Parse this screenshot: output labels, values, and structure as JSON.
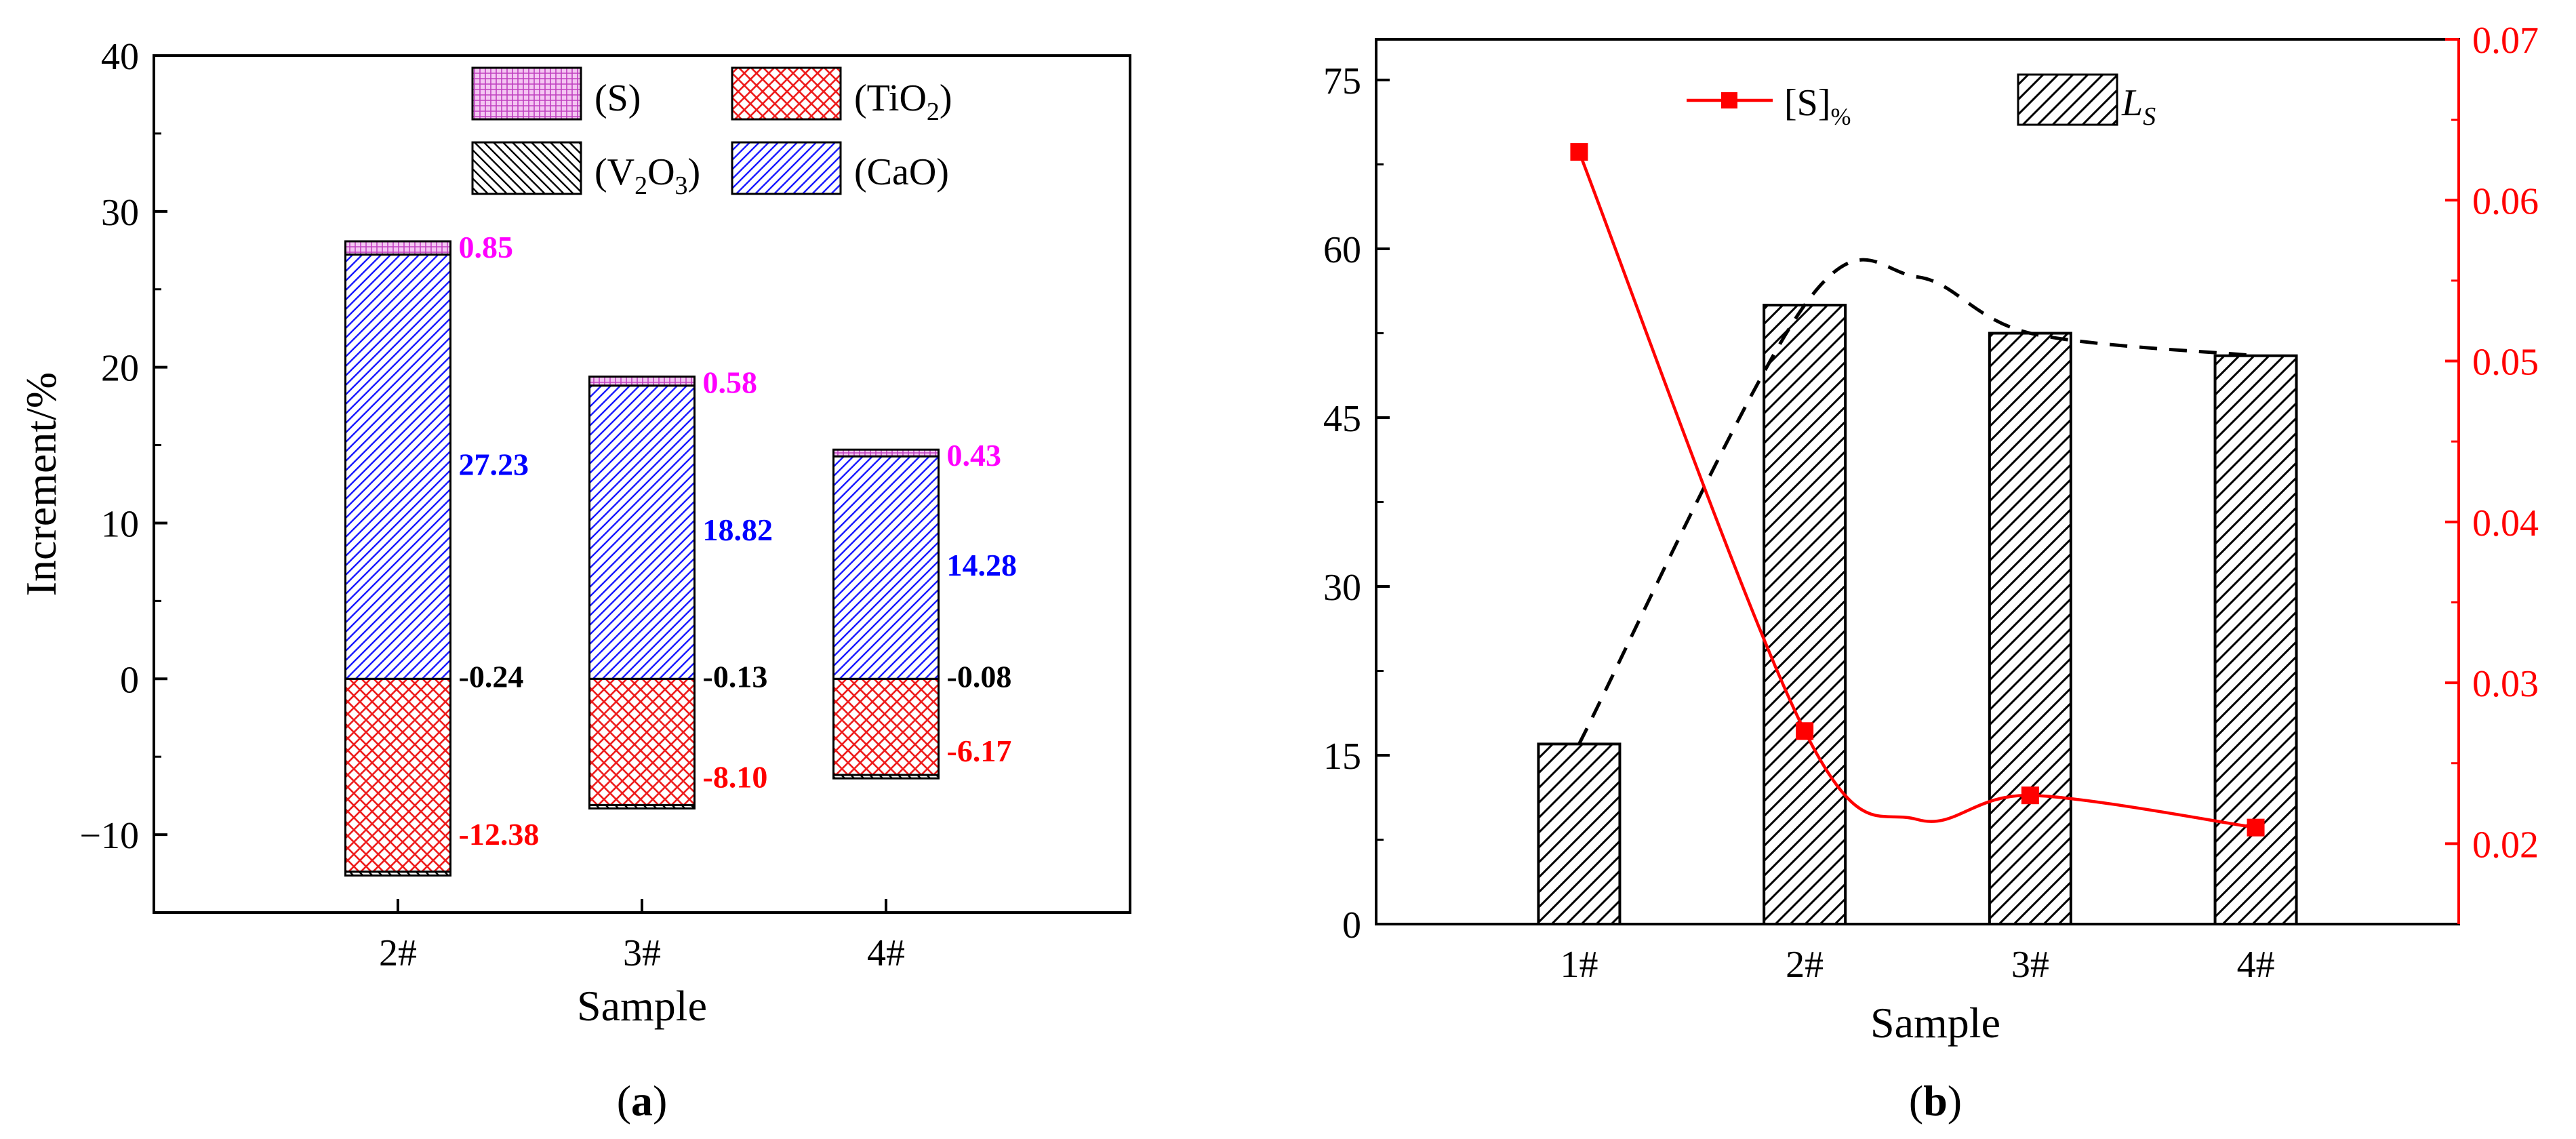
{
  "panels": {
    "a": {
      "caption_open": "(",
      "caption_letter": "a",
      "caption_close": ")"
    },
    "b": {
      "caption_open": "(",
      "caption_letter": "b",
      "caption_close": ")"
    }
  },
  "colors": {
    "S": "#cc33cc",
    "TiO2": "#ee1c1c",
    "V2O3": "#000000",
    "CaO": "#1a1aff",
    "label_S": "#ff00ff",
    "label_CaO": "#0000ff",
    "label_V2O3": "#000000",
    "label_TiO2": "#ff0000",
    "line_S": "#ff0000",
    "axis": "#000000",
    "right_axis": "#ff0000"
  },
  "chart_data": [
    {
      "id": "a",
      "type": "bar",
      "stacked": true,
      "title": "",
      "xlabel": "Sample",
      "ylabel": "Increment/%",
      "ylim": [
        -15,
        40
      ],
      "yticks": [
        -10,
        0,
        10,
        20,
        30,
        40
      ],
      "ytick_labels": [
        "−10",
        "0",
        "10",
        "20",
        "30",
        "40"
      ],
      "categories": [
        "2#",
        "3#",
        "4#"
      ],
      "series": [
        {
          "key": "TiO2",
          "name": "(TiO2)",
          "values": [
            -12.38,
            -8.1,
            -6.17
          ],
          "labels": [
            "-12.38",
            "-8.10",
            "-6.17"
          ]
        },
        {
          "key": "V2O3",
          "name": "(V2O3)",
          "values": [
            -0.24,
            -0.13,
            -0.08
          ],
          "labels": [
            "-0.24",
            "-0.13",
            "-0.08"
          ]
        },
        {
          "key": "CaO",
          "name": "(CaO)",
          "values": [
            27.23,
            18.82,
            14.28
          ],
          "labels": [
            "27.23",
            "18.82",
            "14.28"
          ]
        },
        {
          "key": "S",
          "name": "(S)",
          "values": [
            0.85,
            0.58,
            0.43
          ],
          "labels": [
            "0.85",
            "0.58",
            "0.43"
          ]
        }
      ],
      "legend": {
        "position": "top",
        "items": [
          {
            "key": "S",
            "text": "(S)",
            "sub": "",
            "tail": ""
          },
          {
            "key": "TiO2",
            "text": "(TiO",
            "sub": "2",
            "tail": ")"
          },
          {
            "key": "V2O3",
            "text": "(V",
            "sub": "2",
            "mid": "O",
            "sub2": "3",
            "tail": ")"
          },
          {
            "key": "CaO",
            "text": "(CaO)",
            "sub": "",
            "tail": ""
          }
        ]
      }
    },
    {
      "id": "b",
      "type": "bar+line",
      "title": "",
      "xlabel": "Sample",
      "ylabel_left": "",
      "ylabel_right": "",
      "categories": [
        "1#",
        "2#",
        "3#",
        "4#"
      ],
      "ylim_left": [
        0,
        75
      ],
      "yticks_left": [
        0,
        15,
        30,
        45,
        60,
        75
      ],
      "ylim_right": [
        0.015,
        0.07
      ],
      "yticks_right": [
        0.02,
        0.03,
        0.04,
        0.05,
        0.06,
        0.07
      ],
      "ytick_labels_right": [
        "0.02",
        "0.03",
        "0.04",
        "0.05",
        "0.06",
        "0.07"
      ],
      "bars": {
        "name": "L_S",
        "values": [
          16,
          55,
          52.5,
          50.5
        ]
      },
      "trend_dashed": {
        "description": "dashed trend line over bars",
        "x_peak_between": [
          "2#",
          "3#"
        ],
        "peak_value": 57.5
      },
      "line": {
        "name": "[S]%",
        "values": [
          0.063,
          0.027,
          0.023,
          0.021
        ]
      },
      "legend": {
        "position": "top",
        "line_label": "[S]",
        "line_label_sub": "%",
        "bar_label": "L",
        "bar_label_sub": "S"
      }
    }
  ]
}
